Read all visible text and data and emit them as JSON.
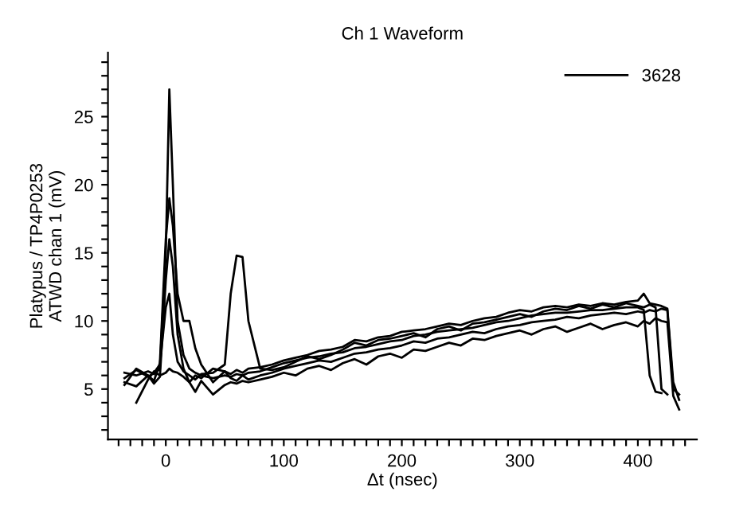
{
  "chart_data": {
    "type": "line",
    "title": "Ch 1 Waveform",
    "xlabel": "Δt (nsec)",
    "ylabel": "Platypus / TP4P0253\nATWD chan 1 (mV)",
    "x": [
      -35,
      -25,
      -15,
      -10,
      -5,
      0,
      3,
      6,
      10,
      15,
      20,
      25,
      30,
      40,
      50,
      55,
      60,
      65,
      70,
      80,
      90,
      100,
      110,
      120,
      130,
      140,
      150,
      160,
      170,
      180,
      190,
      200,
      210,
      220,
      230,
      240,
      250,
      260,
      270,
      280,
      290,
      300,
      310,
      320,
      330,
      340,
      350,
      360,
      370,
      380,
      390,
      400,
      405,
      410,
      415,
      420,
      425,
      430,
      435
    ],
    "series": [
      {
        "name": "3628",
        "color": "#000000",
        "values": [
          6.2,
          6.0,
          6.3,
          6.1,
          6.5,
          15,
          27,
          20,
          10,
          7.5,
          6.5,
          6.2,
          6.0,
          5.8,
          6.0,
          5.9,
          6.1,
          6.0,
          6.2,
          6.3,
          6.6,
          6.9,
          7.1,
          7.3,
          7.4,
          7.6,
          7.7,
          8.0,
          8.1,
          8.3,
          8.5,
          8.6,
          8.9,
          9.0,
          9.2,
          9.3,
          9.4,
          9.5,
          9.7,
          9.9,
          10.0,
          10.2,
          10.4,
          10.5,
          10.6,
          10.6,
          10.7,
          10.8,
          10.8,
          10.9,
          11.0,
          11.0,
          10.8,
          6.0,
          4.8,
          4.7,
          null,
          null,
          null
        ]
      },
      {
        "color": "#000000",
        "values": [
          5.8,
          6.4,
          5.9,
          6.2,
          6.8,
          11,
          12,
          9,
          7,
          6.3,
          6.0,
          5.7,
          6.1,
          6.2,
          6.8,
          12,
          14.8,
          14.7,
          10,
          6.5,
          6.4,
          6.6,
          7.0,
          7.4,
          7.2,
          7.5,
          7.9,
          8.4,
          8.2,
          8.6,
          8.7,
          8.9,
          9.1,
          8.8,
          9.4,
          9.6,
          9.3,
          9.8,
          9.9,
          10.1,
          10.3,
          10.5,
          10.3,
          10.7,
          10.9,
          10.8,
          11.1,
          10.9,
          11.2,
          11.0,
          11.3,
          11.1,
          11.0,
          11.2,
          11.0,
          5.0,
          4.6,
          null,
          null
        ]
      },
      {
        "color": "#000000",
        "values": [
          5.3,
          6.5,
          6.0,
          5.6,
          6.9,
          16,
          19,
          17,
          12,
          10,
          10,
          8,
          6.8,
          5.5,
          6.3,
          5.8,
          5.6,
          6.0,
          5.7,
          6.0,
          6.2,
          6.5,
          6.7,
          6.9,
          7.1,
          7.0,
          7.3,
          7.6,
          7.7,
          7.9,
          8.0,
          8.2,
          8.5,
          8.4,
          8.7,
          8.8,
          9.0,
          9.2,
          9.1,
          9.4,
          9.6,
          9.7,
          9.9,
          10.0,
          10.1,
          10.3,
          10.2,
          10.4,
          10.5,
          10.6,
          10.5,
          10.7,
          10.6,
          10.8,
          10.7,
          10.9,
          10.8,
          5.0,
          4.6
        ]
      },
      {
        "color": "#000000",
        "values": [
          5.5,
          5.2,
          6.0,
          5.4,
          5.9,
          13,
          16,
          14,
          9,
          6.5,
          5.5,
          4.8,
          5.6,
          4.6,
          5.3,
          5.5,
          5.4,
          5.6,
          5.5,
          5.7,
          5.9,
          6.2,
          6.0,
          6.5,
          6.7,
          6.4,
          6.9,
          7.2,
          6.8,
          7.4,
          7.6,
          7.3,
          7.9,
          7.8,
          8.1,
          8.4,
          8.2,
          8.7,
          8.6,
          8.9,
          9.1,
          9.3,
          9.0,
          9.4,
          9.6,
          9.2,
          9.5,
          9.8,
          9.4,
          9.7,
          9.9,
          9.6,
          10.0,
          9.8,
          10.2,
          10.0,
          9.9,
          4.5,
          3.5
        ]
      },
      {
        "color": "#000000",
        "values": [
          null,
          4.0,
          5.7,
          6.3,
          6.0,
          6.2,
          6.5,
          6.3,
          6.2,
          5.9,
          5.5,
          6.0,
          5.8,
          6.5,
          6.3,
          6.1,
          6.4,
          6.2,
          6.5,
          6.6,
          6.8,
          7.1,
          7.3,
          7.5,
          7.8,
          7.9,
          8.1,
          8.6,
          8.5,
          8.8,
          8.9,
          9.2,
          9.3,
          9.4,
          9.6,
          9.8,
          9.7,
          10.0,
          10.2,
          10.3,
          10.6,
          10.8,
          10.7,
          11.0,
          11.1,
          11.0,
          11.2,
          11.1,
          11.3,
          11.2,
          11.4,
          11.5,
          12.0,
          11.3,
          11.2,
          11.1,
          10.9,
          5.5,
          4.2
        ]
      }
    ],
    "xlim": [
      -49,
      450
    ],
    "ylim": [
      1.3,
      29.7
    ],
    "xticks": [
      {
        "value": -40,
        "label": null
      },
      {
        "value": -30,
        "label": null
      },
      {
        "value": -20,
        "label": null
      },
      {
        "value": -10,
        "label": null
      },
      0,
      {
        "value": 10,
        "label": null
      },
      {
        "value": 20,
        "label": null
      },
      {
        "value": 30,
        "label": null
      },
      {
        "value": 40,
        "label": null
      },
      {
        "value": 50,
        "label": null
      },
      {
        "value": 60,
        "label": null
      },
      {
        "value": 70,
        "label": null
      },
      {
        "value": 80,
        "label": null
      },
      {
        "value": 90,
        "label": null
      },
      100,
      {
        "value": 110,
        "label": null
      },
      {
        "value": 120,
        "label": null
      },
      {
        "value": 130,
        "label": null
      },
      {
        "value": 140,
        "label": null
      },
      {
        "value": 150,
        "label": null
      },
      {
        "value": 160,
        "label": null
      },
      {
        "value": 170,
        "label": null
      },
      {
        "value": 180,
        "label": null
      },
      {
        "value": 190,
        "label": null
      },
      200,
      {
        "value": 210,
        "label": null
      },
      {
        "value": 220,
        "label": null
      },
      {
        "value": 230,
        "label": null
      },
      {
        "value": 240,
        "label": null
      },
      {
        "value": 250,
        "label": null
      },
      {
        "value": 260,
        "label": null
      },
      {
        "value": 270,
        "label": null
      },
      {
        "value": 280,
        "label": null
      },
      {
        "value": 290,
        "label": null
      },
      300,
      {
        "value": 310,
        "label": null
      },
      {
        "value": 320,
        "label": null
      },
      {
        "value": 330,
        "label": null
      },
      {
        "value": 340,
        "label": null
      },
      {
        "value": 350,
        "label": null
      },
      {
        "value": 360,
        "label": null
      },
      {
        "value": 370,
        "label": null
      },
      {
        "value": 380,
        "label": null
      },
      {
        "value": 390,
        "label": null
      },
      400,
      {
        "value": 410,
        "label": null
      },
      {
        "value": 420,
        "label": null
      },
      {
        "value": 430,
        "label": null
      },
      {
        "value": 440,
        "label": null
      }
    ],
    "yticks": [
      {
        "value": 2,
        "label": null
      },
      {
        "value": 3,
        "label": null
      },
      {
        "value": 4,
        "label": null
      },
      5,
      {
        "value": 6,
        "label": null
      },
      {
        "value": 7,
        "label": null
      },
      {
        "value": 8,
        "label": null
      },
      {
        "value": 9,
        "label": null
      },
      10,
      {
        "value": 11,
        "label": null
      },
      {
        "value": 12,
        "label": null
      },
      {
        "value": 13,
        "label": null
      },
      {
        "value": 14,
        "label": null
      },
      15,
      {
        "value": 16,
        "label": null
      },
      {
        "value": 17,
        "label": null
      },
      {
        "value": 18,
        "label": null
      },
      {
        "value": 19,
        "label": null
      },
      20,
      {
        "value": 21,
        "label": null
      },
      {
        "value": 22,
        "label": null
      },
      {
        "value": 23,
        "label": null
      },
      {
        "value": 24,
        "label": null
      },
      25,
      {
        "value": 26,
        "label": null
      },
      {
        "value": 27,
        "label": null
      },
      {
        "value": 28,
        "label": null
      },
      {
        "value": 29,
        "label": null
      }
    ],
    "grid": false,
    "legend": "top right",
    "marker": "none",
    "line_style": "solid"
  }
}
